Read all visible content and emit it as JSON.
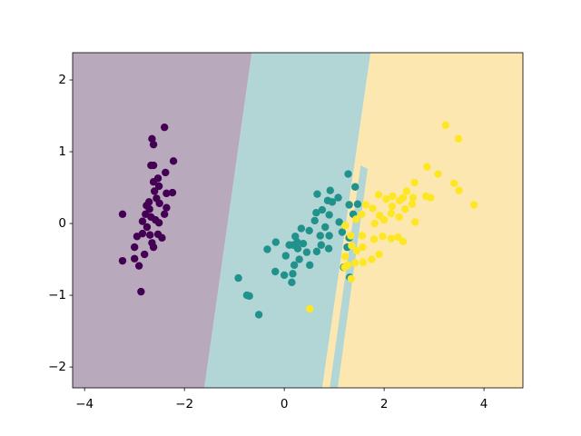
{
  "chart_data": {
    "type": "scatter",
    "xlim": [
      -4.24,
      4.78
    ],
    "ylim": [
      -2.29,
      2.38
    ],
    "xticks": [
      {
        "value": -4,
        "label": "−4"
      },
      {
        "value": -2,
        "label": "−2"
      },
      0,
      2,
      4
    ],
    "yticks": [
      {
        "value": -2,
        "label": "−2"
      },
      {
        "value": -1,
        "label": "−1"
      },
      0,
      1,
      2
    ],
    "regions": [
      {
        "color": "#b9a9bd",
        "polygon": [
          [
            -4.24,
            2.38
          ],
          [
            -0.65,
            2.38
          ],
          [
            -1.6,
            -2.29
          ],
          [
            -4.24,
            -2.29
          ]
        ]
      },
      {
        "color": "#b1d6d5",
        "polygon": [
          [
            -0.65,
            2.38
          ],
          [
            1.73,
            2.38
          ],
          [
            0.76,
            -2.29
          ],
          [
            -1.6,
            -2.29
          ]
        ]
      },
      {
        "color": "#fde7b0",
        "polygon": [
          [
            1.73,
            2.38
          ],
          [
            4.78,
            2.38
          ],
          [
            4.78,
            -2.29
          ],
          [
            0.76,
            -2.29
          ]
        ]
      },
      {
        "color": "#b1d6d5",
        "polygon": [
          [
            1.53,
            0.81
          ],
          [
            1.67,
            0.76
          ],
          [
            1.07,
            -2.29
          ],
          [
            0.91,
            -2.29
          ]
        ]
      }
    ],
    "series": [
      {
        "color": "#440154",
        "points": [
          [
            -2.4,
            1.34
          ],
          [
            -2.65,
            1.18
          ],
          [
            -2.62,
            1.1
          ],
          [
            -2.22,
            0.87
          ],
          [
            -2.67,
            0.81
          ],
          [
            -2.62,
            0.81
          ],
          [
            -2.38,
            0.71
          ],
          [
            -2.53,
            0.63
          ],
          [
            -2.62,
            0.58
          ],
          [
            -2.51,
            0.52
          ],
          [
            -2.24,
            0.43
          ],
          [
            -2.36,
            0.42
          ],
          [
            -2.76,
            0.25
          ],
          [
            -2.71,
            0.3
          ],
          [
            -2.56,
            0.35
          ],
          [
            -2.36,
            0.22
          ],
          [
            -3.24,
            0.13
          ],
          [
            -2.78,
            0.13
          ],
          [
            -2.67,
            0.09
          ],
          [
            -2.4,
            0.13
          ],
          [
            -2.84,
            0.03
          ],
          [
            -2.51,
            0.01
          ],
          [
            -2.84,
            -0.14
          ],
          [
            -2.69,
            -0.16
          ],
          [
            -2.53,
            -0.15
          ],
          [
            -2.45,
            -0.2
          ],
          [
            -2.95,
            -0.18
          ],
          [
            -2.65,
            -0.27
          ],
          [
            -3.0,
            -0.33
          ],
          [
            -2.62,
            -0.33
          ],
          [
            -2.8,
            -0.43
          ],
          [
            -3.24,
            -0.52
          ],
          [
            -3.0,
            -0.49
          ],
          [
            -2.91,
            -0.59
          ],
          [
            -2.87,
            -0.95
          ],
          [
            -2.6,
            0.45
          ],
          [
            -2.7,
            0.2
          ],
          [
            -2.58,
            0.05
          ],
          [
            -2.75,
            -0.05
          ],
          [
            -2.5,
            0.28
          ]
        ]
      },
      {
        "color": "#21918c",
        "points": [
          [
            1.28,
            0.69
          ],
          [
            1.42,
            0.51
          ],
          [
            0.92,
            0.46
          ],
          [
            0.66,
            0.41
          ],
          [
            1.08,
            0.36
          ],
          [
            0.87,
            0.32
          ],
          [
            0.96,
            0.3
          ],
          [
            1.3,
            0.26
          ],
          [
            1.47,
            0.27
          ],
          [
            0.76,
            0.19
          ],
          [
            0.64,
            0.15
          ],
          [
            1.38,
            0.13
          ],
          [
            0.9,
            0.12
          ],
          [
            0.61,
            0.04
          ],
          [
            0.34,
            -0.07
          ],
          [
            0.5,
            -0.1
          ],
          [
            0.72,
            -0.17
          ],
          [
            0.9,
            -0.17
          ],
          [
            1.16,
            -0.12
          ],
          [
            0.22,
            -0.18
          ],
          [
            -0.17,
            -0.26
          ],
          [
            0.38,
            -0.28
          ],
          [
            0.1,
            -0.3
          ],
          [
            -0.34,
            -0.36
          ],
          [
            0.27,
            -0.35
          ],
          [
            0.45,
            -0.4
          ],
          [
            0.65,
            -0.39
          ],
          [
            0.89,
            -0.35
          ],
          [
            1.26,
            -0.33
          ],
          [
            0.03,
            -0.45
          ],
          [
            0.3,
            -0.5
          ],
          [
            0.51,
            -0.58
          ],
          [
            0.2,
            -0.58
          ],
          [
            1.19,
            -0.61
          ],
          [
            -0.18,
            -0.67
          ],
          [
            0.0,
            -0.72
          ],
          [
            0.17,
            -0.7
          ],
          [
            0.15,
            -0.82
          ],
          [
            1.31,
            -0.75
          ],
          [
            -0.92,
            -0.76
          ],
          [
            -0.75,
            -1.0
          ],
          [
            -0.7,
            -1.01
          ],
          [
            -0.51,
            -1.27
          ],
          [
            1.1,
            0.02
          ],
          [
            1.3,
            -0.2
          ],
          [
            0.26,
            -0.26
          ],
          [
            0.74,
            -0.3
          ],
          [
            0.82,
            -0.05
          ],
          [
            0.18,
            -0.3
          ]
        ]
      },
      {
        "color": "#fde725",
        "points": [
          [
            3.23,
            1.37
          ],
          [
            3.49,
            1.18
          ],
          [
            2.86,
            0.79
          ],
          [
            3.08,
            0.69
          ],
          [
            2.61,
            0.57
          ],
          [
            3.4,
            0.56
          ],
          [
            3.5,
            0.46
          ],
          [
            3.8,
            0.26
          ],
          [
            2.45,
            0.45
          ],
          [
            1.89,
            0.4
          ],
          [
            2.17,
            0.38
          ],
          [
            2.38,
            0.36
          ],
          [
            2.58,
            0.36
          ],
          [
            2.84,
            0.38
          ],
          [
            2.93,
            0.36
          ],
          [
            2.04,
            0.34
          ],
          [
            2.31,
            0.32
          ],
          [
            1.63,
            0.26
          ],
          [
            2.56,
            0.27
          ],
          [
            2.16,
            0.24
          ],
          [
            1.77,
            0.21
          ],
          [
            2.42,
            0.2
          ],
          [
            2.14,
            0.14
          ],
          [
            2.3,
            0.09
          ],
          [
            2.62,
            0.02
          ],
          [
            1.91,
            0.11
          ],
          [
            2.0,
            0.05
          ],
          [
            1.55,
            0.13
          ],
          [
            1.44,
            0.06
          ],
          [
            1.81,
            -0.0
          ],
          [
            1.22,
            -0.03
          ],
          [
            1.33,
            -0.17
          ],
          [
            1.56,
            -0.17
          ],
          [
            1.8,
            -0.22
          ],
          [
            1.97,
            -0.18
          ],
          [
            2.14,
            -0.21
          ],
          [
            2.28,
            -0.19
          ],
          [
            2.38,
            -0.25
          ],
          [
            1.35,
            -0.31
          ],
          [
            1.57,
            -0.33
          ],
          [
            1.45,
            -0.38
          ],
          [
            1.9,
            -0.43
          ],
          [
            1.22,
            -0.46
          ],
          [
            1.42,
            -0.55
          ],
          [
            1.58,
            -0.54
          ],
          [
            1.75,
            -0.5
          ],
          [
            1.27,
            -0.58
          ],
          [
            1.21,
            -0.61
          ],
          [
            1.34,
            -0.77
          ],
          [
            0.51,
            -1.19
          ]
        ]
      }
    ]
  }
}
